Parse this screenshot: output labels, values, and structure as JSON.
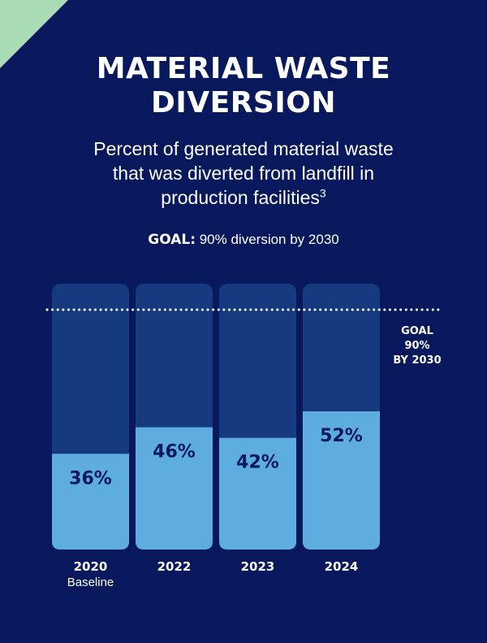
{
  "header": {
    "title_lines": [
      "MATERIAL WASTE",
      "DIVERSION"
    ],
    "subtitle_lines": [
      "Percent of generated material waste",
      "that was diverted from landfill in",
      "production facilities"
    ],
    "subtitle_footnote": "3",
    "goal_prefix": "GOAL:",
    "goal_text": " 90% diversion by 2030"
  },
  "colors": {
    "background": "#08185c",
    "bar_track": "#163a80",
    "bar_fill": "#5dade0",
    "corner_accent": "#a9dcb4",
    "goal_line": "#ffffff"
  },
  "chart_data": {
    "type": "bar",
    "categories": [
      "2020",
      "2022",
      "2023",
      "2024"
    ],
    "category_sublabels": [
      "Baseline",
      "",
      "",
      ""
    ],
    "values": [
      36,
      46,
      42,
      52
    ],
    "value_labels": [
      "36%",
      "46%",
      "42%",
      "52%"
    ],
    "ylim": [
      0,
      100
    ],
    "title": "MATERIAL WASTE DIVERSION",
    "xlabel": "",
    "ylabel": "",
    "grid": false,
    "goal": {
      "value": 90,
      "label_lines": [
        "GOAL",
        "90%",
        "BY 2030"
      ]
    }
  }
}
